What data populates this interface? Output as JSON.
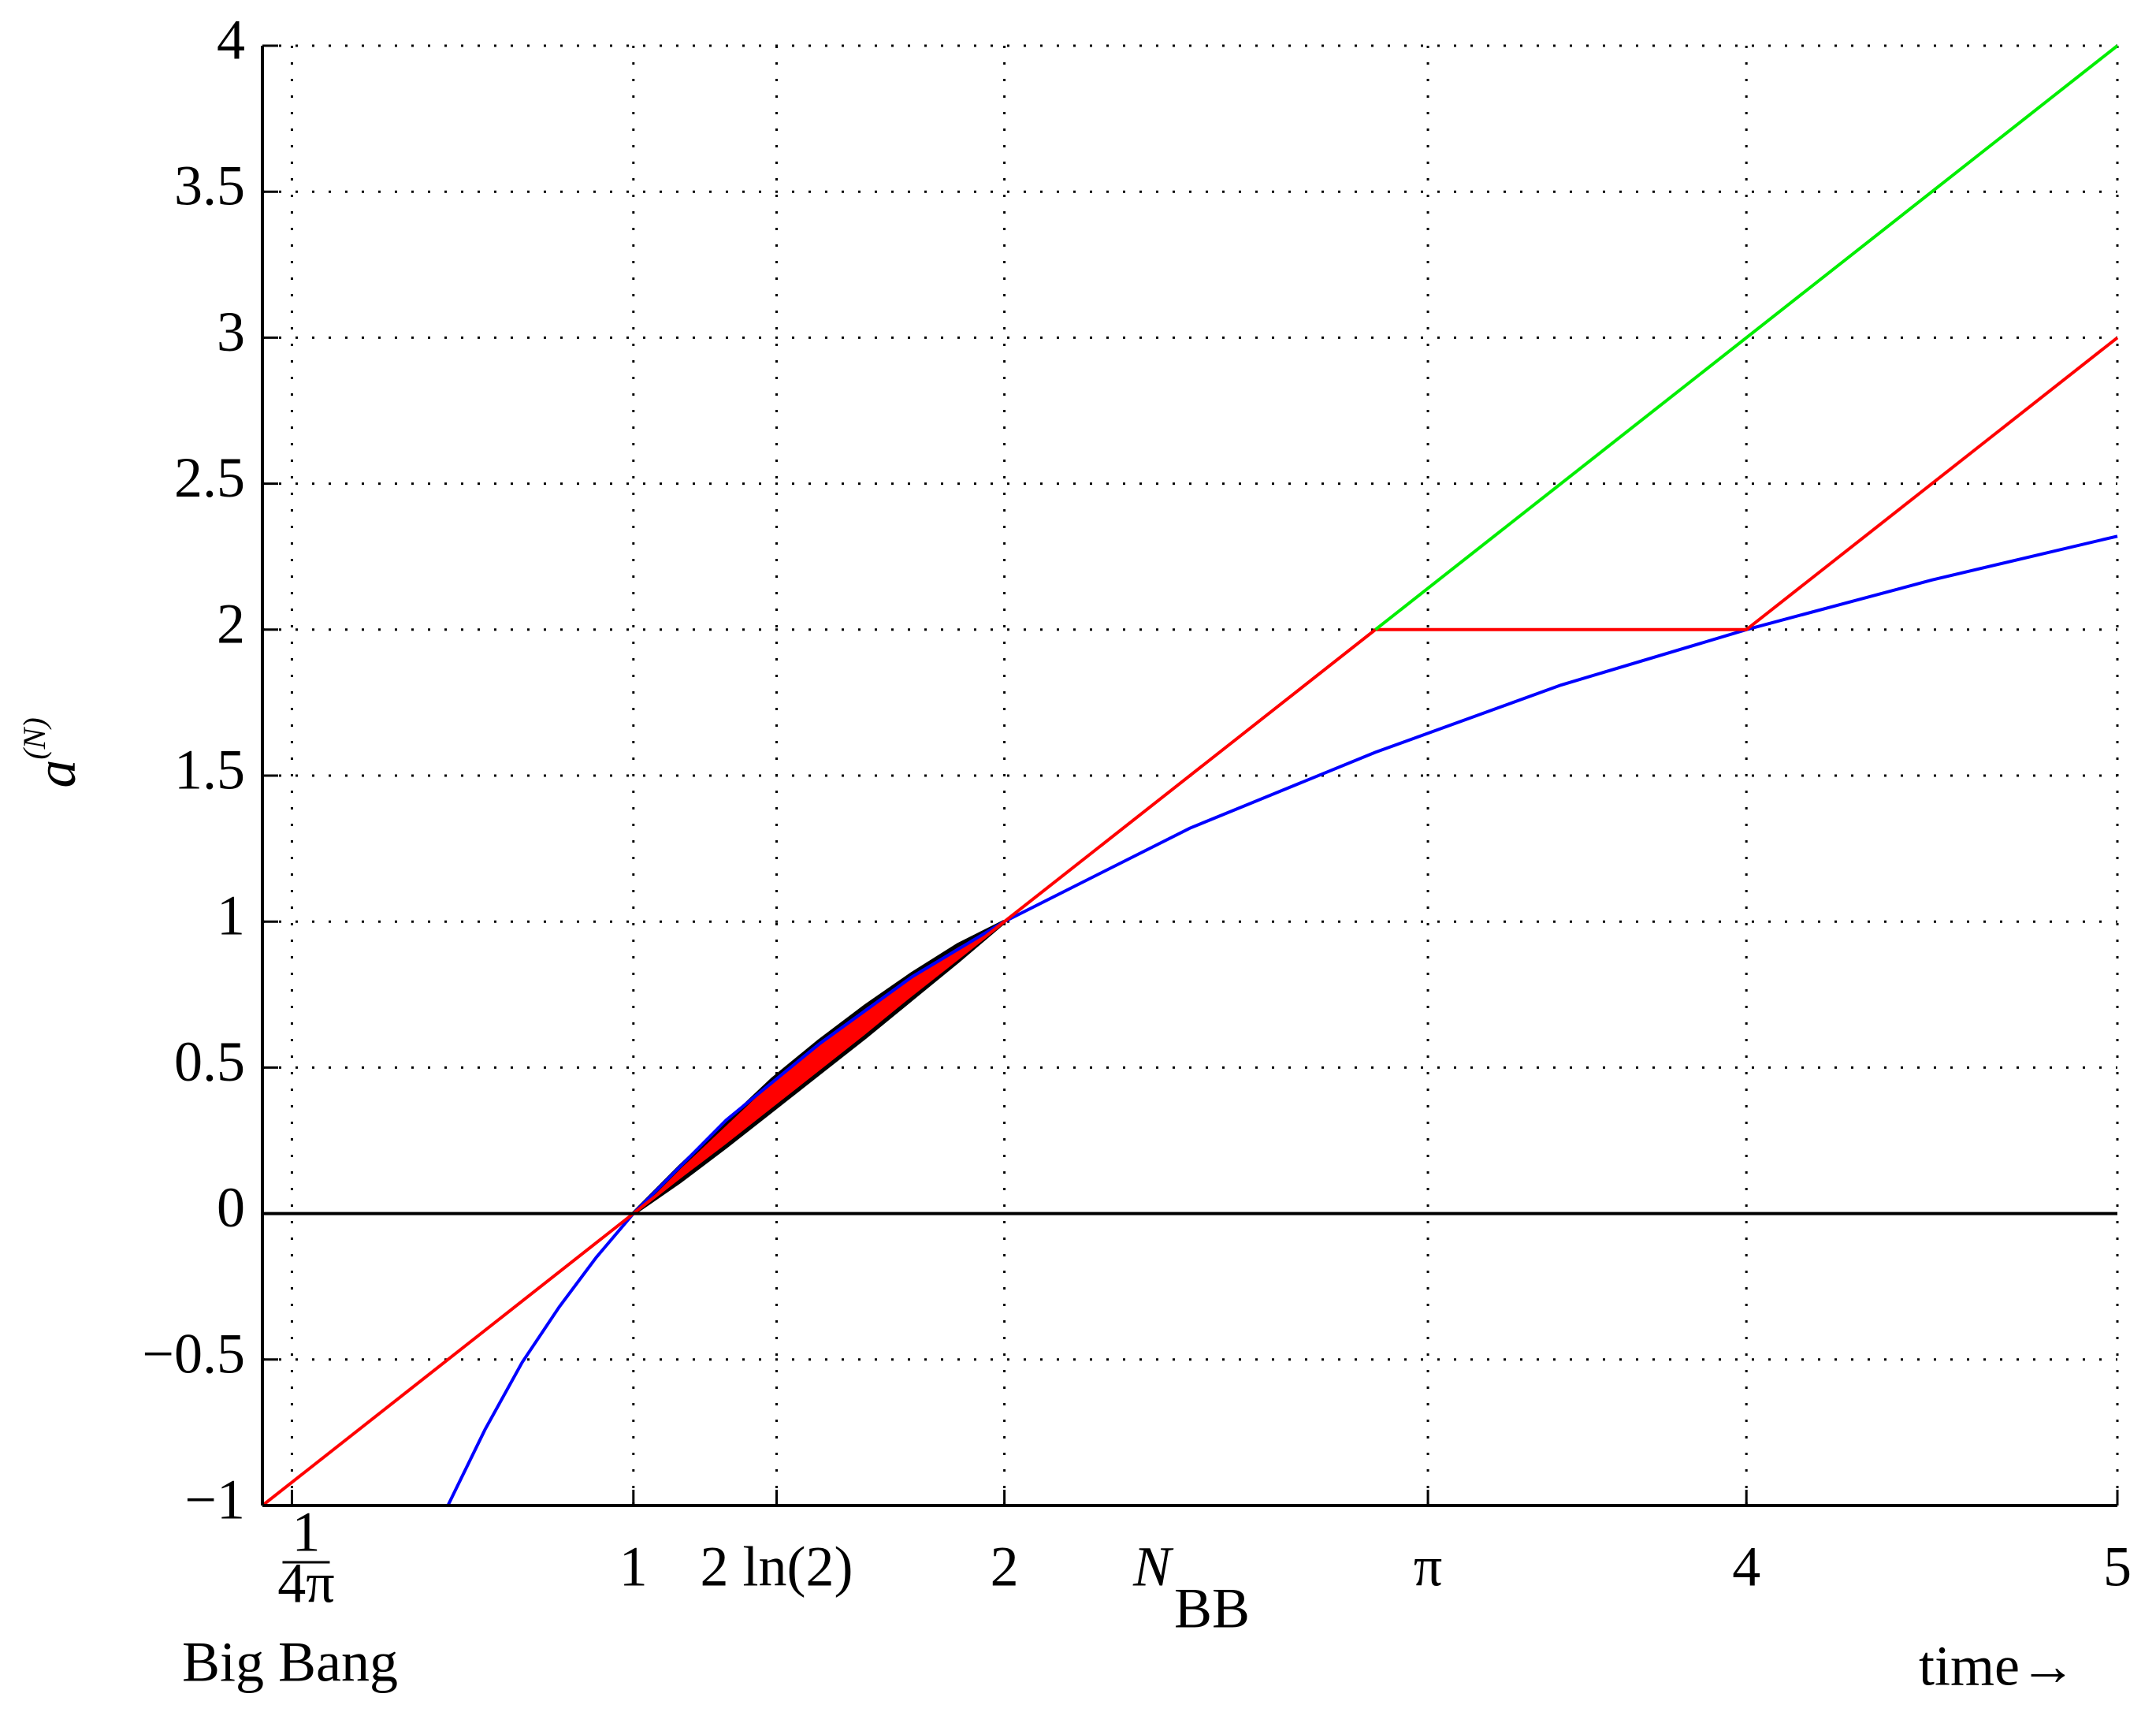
{
  "chart_data": {
    "type": "line",
    "ylabel": "a",
    "ylabel_sup": "(N)",
    "xlim": [
      0,
      5
    ],
    "ylim": [
      -1,
      4
    ],
    "xticks": [
      {
        "value": 0.0796,
        "numerator": "1",
        "denominator": "4π"
      },
      1,
      {
        "value": 1.386,
        "label": "2 ln(2)"
      },
      2,
      {
        "value": 3.1416,
        "label": "π"
      },
      4,
      5
    ],
    "yticks": [
      {
        "value": -1,
        "label": "−1"
      },
      {
        "value": -0.5,
        "label": "−0.5"
      },
      0,
      0.5,
      1,
      1.5,
      2,
      2.5,
      3,
      3.5,
      4
    ],
    "grid": true,
    "zero_line": true,
    "series": [
      {
        "color": "#0000ff",
        "x": [
          0.5,
          0.6,
          0.7,
          0.8,
          0.9,
          1,
          1.25,
          1.5,
          1.75,
          2,
          2.5,
          3,
          3.5,
          4,
          4.5,
          5
        ],
        "values": [
          -1,
          -0.74,
          -0.51,
          -0.32,
          -0.15,
          0,
          0.32,
          0.58,
          0.81,
          1,
          1.32,
          1.58,
          1.81,
          2,
          2.17,
          2.32
        ]
      },
      {
        "color": "#ff0000",
        "x": [
          0,
          1,
          2,
          3,
          4,
          5
        ],
        "values": [
          -1,
          0,
          1,
          2,
          2,
          3
        ]
      },
      {
        "color": "#00ee00",
        "x": [
          3,
          5
        ],
        "values": [
          2,
          4
        ]
      }
    ],
    "fill_between": {
      "color": "#ff0000",
      "edge_color": "#000000",
      "x": [
        1,
        1.125,
        1.25,
        1.375,
        1.5,
        1.625,
        1.75,
        1.875,
        2
      ],
      "upper": [
        0,
        0.16,
        0.31,
        0.46,
        0.59,
        0.71,
        0.82,
        0.92,
        1
      ],
      "lower": [
        0,
        0.11,
        0.23,
        0.355,
        0.48,
        0.605,
        0.735,
        0.865,
        1
      ]
    },
    "annotations": {
      "nbb": "N",
      "nbb_sub": "BB",
      "big_bang": "Big Bang",
      "time": "time→"
    }
  }
}
